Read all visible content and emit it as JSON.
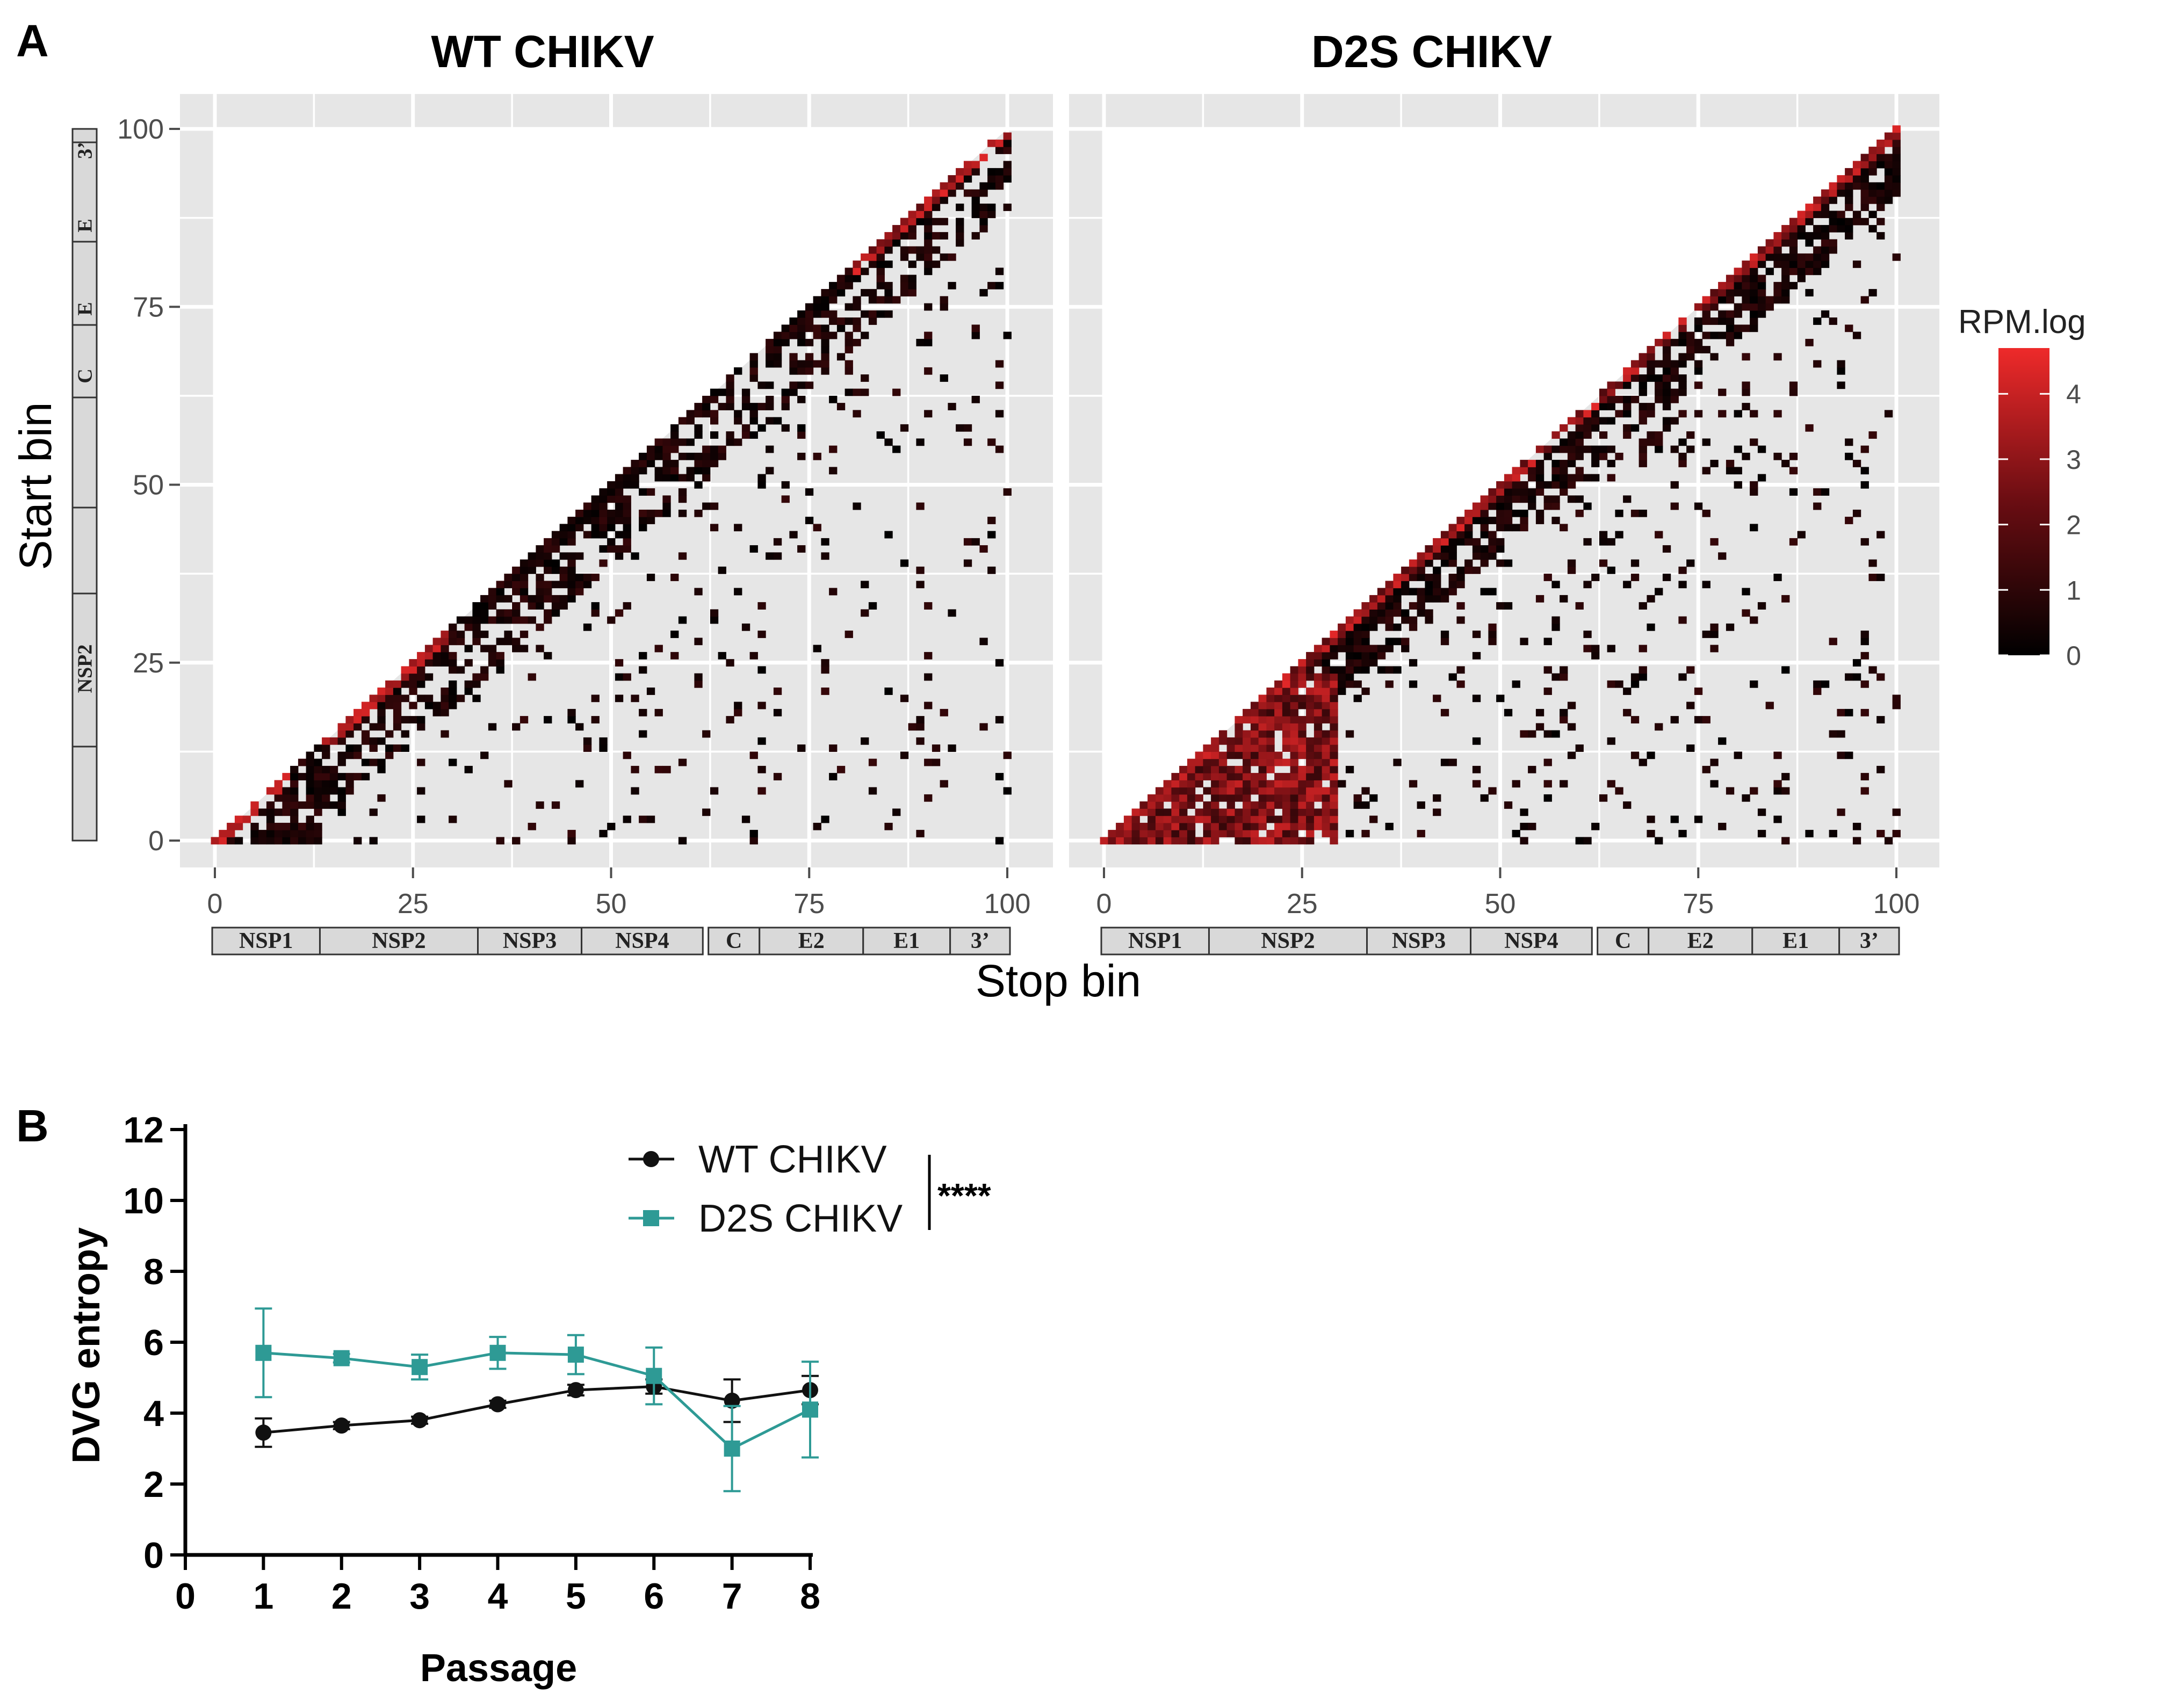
{
  "colors": {
    "panel_bg": "#e6e6e6",
    "grid": "#ffffff",
    "wt": "#111111",
    "d2s": "#2e9a95",
    "heat_low": "#000000",
    "heat_mid": "#6a0d12",
    "heat_high": "#ee2a2a",
    "gene_box": "#d9d9d9"
  },
  "chart_data": [
    {
      "type": "heatmap",
      "panel_label": "A",
      "xlabel": "Stop bin",
      "ylabel": "Start bin",
      "xlim": [
        0,
        100
      ],
      "ylim": [
        0,
        100
      ],
      "x_ticks": [
        "0",
        "25",
        "50",
        "75",
        "100"
      ],
      "y_ticks": [
        "0",
        "25",
        "50",
        "75",
        "100"
      ],
      "legend": {
        "title": "RPM.log",
        "ticks": [
          "0",
          "1",
          "2",
          "3",
          "4"
        ],
        "range": [
          0,
          4.7
        ],
        "position": "right"
      },
      "genome_x": [
        "NSP1",
        "NSP2",
        "NSP3",
        "NSP4",
        "C",
        "E2",
        "E1",
        "3’"
      ],
      "genome_y": [
        "NSP2",
        "C",
        "E",
        "E",
        "3’"
      ],
      "facets": [
        {
          "title": "WT CHIKV",
          "title_color": "#111111",
          "pattern": "wt",
          "seed": 11
        },
        {
          "title": "D2S CHIKV",
          "title_color": "#2e9a95",
          "pattern": "d2s",
          "seed": 29
        }
      ]
    },
    {
      "type": "line",
      "panel_label": "B",
      "title": "",
      "xlabel": "Passage",
      "ylabel": "DVG entropy",
      "xlim": [
        0,
        8
      ],
      "ylim": [
        0,
        12
      ],
      "x_ticks": [
        "0",
        "1",
        "2",
        "3",
        "4",
        "5",
        "6",
        "7",
        "8"
      ],
      "y_ticks": [
        "0",
        "2",
        "4",
        "6",
        "8",
        "10",
        "12"
      ],
      "x": [
        1,
        2,
        3,
        4,
        5,
        6,
        7,
        8
      ],
      "series": [
        {
          "name": "WT CHIKV",
          "marker": "circle",
          "color": "#111111",
          "values": [
            3.45,
            3.65,
            3.8,
            4.25,
            4.65,
            4.75,
            4.35,
            4.65
          ],
          "errors": [
            0.4,
            0.1,
            0.1,
            0.1,
            0.15,
            0.2,
            0.6,
            0.4
          ]
        },
        {
          "name": "D2S CHIKV",
          "marker": "square",
          "color": "#2e9a95",
          "values": [
            5.7,
            5.55,
            5.3,
            5.7,
            5.65,
            5.05,
            3.0,
            4.1
          ],
          "errors": [
            1.25,
            0.12,
            0.35,
            0.45,
            0.55,
            0.8,
            1.2,
            1.35
          ]
        }
      ],
      "significance": "****",
      "legend_position": "top-center"
    }
  ]
}
